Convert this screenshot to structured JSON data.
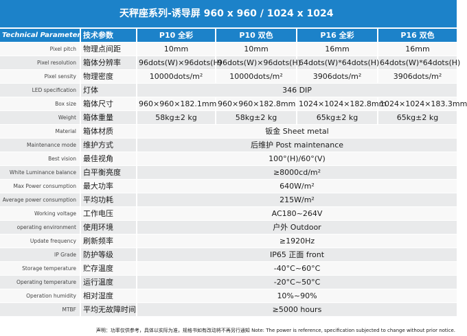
{
  "title": "天秤座系列-诱导屏   960 x 960 / 1024 x 1024",
  "header": {
    "param_en": "Technical Parameter",
    "param_cn": "技术参数",
    "models": [
      "P10 全彩",
      "P10 双色",
      "P16 全彩",
      "P16 双色"
    ]
  },
  "rows": [
    {
      "en": "Pixel pitch",
      "cn": "物理点间距",
      "values": [
        "10mm",
        "10mm",
        "16mm",
        "16mm"
      ]
    },
    {
      "en": "Pixel resolution",
      "cn": "箱体分辨率",
      "values": [
        "96dots(W)×96dots(H)",
        "96dots(W)×96dots(H)",
        "64dots(W)*64dots(H)",
        "64dots(W)*64dots(H)"
      ]
    },
    {
      "en": "Pixel sensity",
      "cn": "物理密度",
      "values": [
        "10000dots/m²",
        "10000dots/m²",
        "3906dots/m²",
        "3906dots/m²"
      ]
    },
    {
      "en": "LED specification",
      "cn": "灯体",
      "values": [
        "346 DIP"
      ]
    },
    {
      "en": "Box size",
      "cn": "箱体尺寸",
      "values": [
        "960×960×182.1mm",
        "960×960×182.8mm",
        "1024×1024×182.8mm",
        "1024×1024×183.3mm"
      ]
    },
    {
      "en": "Weight",
      "cn": "箱体重量",
      "values": [
        "58kg±2 kg",
        "58kg±2 kg",
        "65kg±2 kg",
        "65kg±2 kg"
      ]
    },
    {
      "en": "Material",
      "cn": "箱体材质",
      "values": [
        "钣金  Sheet metal"
      ]
    },
    {
      "en": "Maintenance mode",
      "cn": "维护方式",
      "values": [
        "后维护  Post maintenance"
      ]
    },
    {
      "en": "Best vision",
      "cn": "最佳视角",
      "values": [
        "100°(H)/60°(V)"
      ]
    },
    {
      "en": "White Luminance balance",
      "cn": "白平衡亮度",
      "values": [
        "≥8000cd/m²"
      ]
    },
    {
      "en": "Max Power consumption",
      "cn": "最大功率",
      "values": [
        "640W/m²"
      ]
    },
    {
      "en": "Average power consumption",
      "cn": "平均功耗",
      "values": [
        "215W/m²"
      ]
    },
    {
      "en": "Working voltage",
      "cn": "工作电压",
      "values": [
        "AC180~264V"
      ]
    },
    {
      "en": "operating environment",
      "cn": "使用环境",
      "values": [
        "户外  Outdoor"
      ]
    },
    {
      "en": "Update frequency",
      "cn": "刷新频率",
      "values": [
        "≥1920Hz"
      ]
    },
    {
      "en": "IP Grade",
      "cn": "防护等级",
      "values": [
        "IP65  正面 front"
      ]
    },
    {
      "en": "Storage temperature",
      "cn": "贮存温度",
      "values": [
        "-40°C~60°C"
      ]
    },
    {
      "en": "Operating temperature",
      "cn": "运行温度",
      "values": [
        "-20°C~50°C"
      ]
    },
    {
      "en": "Operation humidity",
      "cn": "相对湿度",
      "values": [
        "10%~90%"
      ]
    },
    {
      "en": "MTBF",
      "cn": "平均无故障时间",
      "values": [
        "≥5000 hours"
      ]
    }
  ],
  "footnote": "声明：功率仅供参考，具体以实际为准，规格书如有改动将不再另行通知    Note: The power is reference, specification subjected to change without prior notice."
}
